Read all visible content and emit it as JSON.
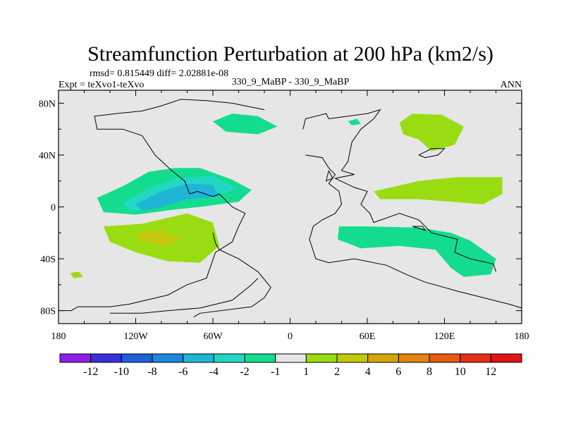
{
  "chart_data": {
    "type": "heatmap",
    "title": "Streamfunction Perturbation at 200 hPa (km2/s)",
    "stats_line": "rmsd= 0.815449 diff= 2.02881e-08",
    "left_label": "Expt = teXvo1-teXvo",
    "center_label": "330_9_MaBP - 330_9_MaBP",
    "right_label": "ANN",
    "x_ticks": [
      {
        "value": -180,
        "label": "180"
      },
      {
        "value": -120,
        "label": "120W"
      },
      {
        "value": -60,
        "label": "60W"
      },
      {
        "value": 0,
        "label": "0"
      },
      {
        "value": 60,
        "label": "60E"
      },
      {
        "value": 120,
        "label": "120E"
      },
      {
        "value": 180,
        "label": "180"
      }
    ],
    "y_ticks": [
      {
        "value": 80,
        "label": "80N"
      },
      {
        "value": 40,
        "label": "40N"
      },
      {
        "value": 0,
        "label": "0"
      },
      {
        "value": -40,
        "label": "40S"
      },
      {
        "value": -80,
        "label": "80S"
      }
    ],
    "xlim": [
      -180,
      180
    ],
    "ylim": [
      -90,
      90
    ],
    "levels": [
      "-12",
      "-10",
      "-8",
      "-6",
      "-4",
      "-2",
      "-1",
      "1",
      "2",
      "4",
      "6",
      "8",
      "10",
      "12"
    ],
    "colors": [
      "#8e1fe6",
      "#3a2fd9",
      "#1f5fd8",
      "#1d86dc",
      "#1fb6d6",
      "#22d8c2",
      "#14dc8e",
      "#e6e6e6",
      "#99dc12",
      "#c4c80c",
      "#d6a50a",
      "#e08310",
      "#e65a12",
      "#e62f14",
      "#e01414"
    ],
    "regions": [
      {
        "name": "north-pacific-neg",
        "bin": 6,
        "points": [
          [
            -60,
            66
          ],
          [
            -45,
            72
          ],
          [
            -25,
            70
          ],
          [
            -10,
            62
          ],
          [
            -25,
            56
          ],
          [
            -50,
            58
          ]
        ]
      },
      {
        "name": "arctic-neg-small",
        "bin": 6,
        "points": [
          [
            45,
            66
          ],
          [
            52,
            68
          ],
          [
            55,
            64
          ],
          [
            48,
            63
          ]
        ]
      },
      {
        "name": "east-asia-pos",
        "bin": 8,
        "points": [
          [
            85,
            65
          ],
          [
            95,
            72
          ],
          [
            118,
            71
          ],
          [
            135,
            62
          ],
          [
            128,
            48
          ],
          [
            110,
            43
          ],
          [
            100,
            52
          ],
          [
            88,
            56
          ]
        ]
      },
      {
        "name": "central-pacific-neg",
        "bin": 6,
        "points": [
          [
            -150,
            7
          ],
          [
            -130,
            16
          ],
          [
            -110,
            27
          ],
          [
            -90,
            30
          ],
          [
            -70,
            30
          ],
          [
            -45,
            21
          ],
          [
            -30,
            13
          ],
          [
            -40,
            4
          ],
          [
            -70,
            0
          ],
          [
            -90,
            -2
          ],
          [
            -120,
            -6
          ],
          [
            -145,
            -4
          ]
        ]
      },
      {
        "name": "central-pacific-neg2",
        "bin": 5,
        "points": [
          [
            -130,
            3
          ],
          [
            -110,
            14
          ],
          [
            -90,
            22
          ],
          [
            -60,
            24
          ],
          [
            -40,
            14
          ],
          [
            -60,
            8
          ],
          [
            -85,
            5
          ],
          [
            -110,
            -2
          ],
          [
            -125,
            -3
          ]
        ]
      },
      {
        "name": "central-pacific-neg3",
        "bin": 4,
        "points": [
          [
            -120,
            2
          ],
          [
            -100,
            12
          ],
          [
            -80,
            18
          ],
          [
            -60,
            17
          ],
          [
            -55,
            8
          ],
          [
            -80,
            6
          ],
          [
            -100,
            0
          ],
          [
            -115,
            -3
          ]
        ]
      },
      {
        "name": "south-pacific-pos",
        "bin": 8,
        "points": [
          [
            -145,
            -15
          ],
          [
            -115,
            -13
          ],
          [
            -80,
            -5
          ],
          [
            -60,
            -12
          ],
          [
            -55,
            -30
          ],
          [
            -70,
            -43
          ],
          [
            -95,
            -42
          ],
          [
            -120,
            -35
          ],
          [
            -140,
            -27
          ]
        ]
      },
      {
        "name": "south-pacific-pos2",
        "bin": 9,
        "points": [
          [
            -120,
            -20
          ],
          [
            -100,
            -18
          ],
          [
            -85,
            -25
          ],
          [
            -95,
            -30
          ],
          [
            -115,
            -27
          ]
        ]
      },
      {
        "name": "indian-ocean-pos",
        "bin": 8,
        "points": [
          [
            65,
            12
          ],
          [
            100,
            20
          ],
          [
            130,
            23
          ],
          [
            165,
            23
          ],
          [
            165,
            10
          ],
          [
            150,
            2
          ],
          [
            100,
            6
          ],
          [
            70,
            6
          ]
        ]
      },
      {
        "name": "southern-indian-neg",
        "bin": 6,
        "points": [
          [
            38,
            -15
          ],
          [
            60,
            -15
          ],
          [
            100,
            -16
          ],
          [
            125,
            -20
          ],
          [
            140,
            -26
          ],
          [
            160,
            -40
          ],
          [
            156,
            -52
          ],
          [
            135,
            -54
          ],
          [
            125,
            -47
          ],
          [
            113,
            -33
          ],
          [
            85,
            -30
          ],
          [
            55,
            -32
          ],
          [
            37,
            -25
          ]
        ]
      },
      {
        "name": "small-pos-south-pacific",
        "bin": 8,
        "points": [
          [
            -171,
            -51
          ],
          [
            -164,
            -50
          ],
          [
            -161,
            -54
          ],
          [
            -168,
            -55
          ]
        ]
      }
    ],
    "coastlines": [
      [
        [
          -180,
          -80
        ],
        [
          -170,
          -80
        ],
        [
          -165,
          -77
        ],
        [
          -140,
          -77
        ],
        [
          -125,
          -75
        ],
        [
          -95,
          -68
        ],
        [
          -80,
          -60
        ],
        [
          -65,
          -55
        ],
        [
          -58,
          -35
        ],
        [
          -45,
          -27
        ],
        [
          -40,
          -15
        ],
        [
          -35,
          -5
        ],
        [
          -45,
          0
        ],
        [
          -50,
          5
        ],
        [
          -55,
          10
        ],
        [
          -60,
          8
        ],
        [
          -72,
          12
        ],
        [
          -78,
          10
        ],
        [
          -82,
          20
        ],
        [
          -92,
          28
        ],
        [
          -105,
          40
        ],
        [
          -115,
          55
        ],
        [
          -130,
          60
        ],
        [
          -150,
          60
        ],
        [
          -152,
          70
        ],
        [
          -135,
          72
        ],
        [
          -115,
          74
        ],
        [
          -100,
          78
        ],
        [
          -85,
          83
        ],
        [
          -65,
          82
        ],
        [
          -45,
          80
        ],
        [
          -20,
          75
        ]
      ],
      [
        [
          -75,
          -85
        ],
        [
          -70,
          -82
        ],
        [
          -30,
          -77
        ],
        [
          -20,
          -70
        ],
        [
          -15,
          -62
        ],
        [
          -25,
          -50
        ],
        [
          -40,
          -40
        ],
        [
          -55,
          -33
        ],
        [
          -58,
          -28
        ],
        [
          -60,
          -20
        ]
      ],
      [
        [
          -140,
          -82
        ],
        [
          -115,
          -82
        ],
        [
          -95,
          -80
        ],
        [
          -70,
          -78
        ],
        [
          -45,
          -72
        ],
        [
          -30,
          -60
        ],
        [
          -25,
          -55
        ]
      ],
      [
        [
          10,
          60
        ],
        [
          12,
          68
        ],
        [
          20,
          70
        ],
        [
          28,
          72
        ],
        [
          30,
          68
        ],
        [
          45,
          70
        ],
        [
          60,
          72
        ],
        [
          70,
          75
        ],
        [
          65,
          68
        ],
        [
          55,
          60
        ],
        [
          48,
          50
        ],
        [
          45,
          35
        ],
        [
          40,
          28
        ],
        [
          50,
          25
        ],
        [
          35,
          22
        ],
        [
          50,
          15
        ],
        [
          60,
          12
        ],
        [
          55,
          2
        ],
        [
          62,
          -5
        ],
        [
          65,
          -12
        ],
        [
          85,
          -5
        ],
        [
          100,
          -10
        ],
        [
          110,
          -20
        ],
        [
          130,
          -25
        ],
        [
          128,
          -35
        ],
        [
          140,
          -40
        ],
        [
          158,
          -44
        ],
        [
          160,
          -50
        ]
      ],
      [
        [
          12,
          40
        ],
        [
          25,
          38
        ],
        [
          30,
          30
        ],
        [
          35,
          25
        ],
        [
          30,
          18
        ],
        [
          38,
          12
        ],
        [
          40,
          2
        ],
        [
          35,
          -5
        ],
        [
          25,
          -10
        ],
        [
          18,
          -15
        ],
        [
          15,
          -25
        ],
        [
          20,
          -40
        ],
        [
          30,
          -43
        ],
        [
          50,
          -40
        ],
        [
          75,
          -45
        ],
        [
          90,
          -52
        ],
        [
          105,
          -58
        ],
        [
          130,
          -65
        ],
        [
          170,
          -75
        ],
        [
          180,
          -78
        ]
      ],
      [
        [
          100,
          40
        ],
        [
          110,
          45
        ],
        [
          120,
          45
        ],
        [
          115,
          40
        ],
        [
          105,
          38
        ],
        [
          100,
          40
        ]
      ],
      [
        [
          30,
          28
        ],
        [
          33,
          22
        ],
        [
          28,
          20
        ],
        [
          30,
          28
        ]
      ],
      [
        [
          95,
          -15
        ],
        [
          105,
          -18
        ],
        [
          103,
          -15
        ],
        [
          95,
          -15
        ]
      ]
    ],
    "colorbar_labels": [
      "-12",
      "-10",
      "-8",
      "-6",
      "-4",
      "-2",
      "-1",
      "1",
      "2",
      "4",
      "6",
      "8",
      "10",
      "12"
    ]
  }
}
